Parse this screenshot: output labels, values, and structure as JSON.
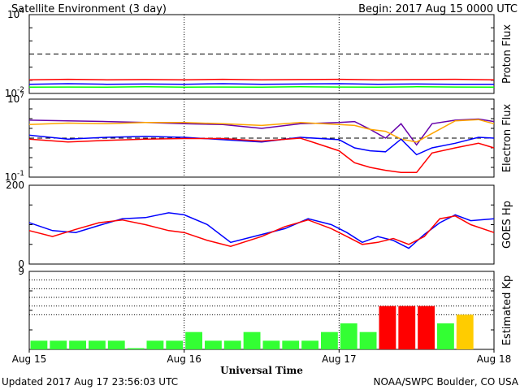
{
  "title": "Satellite Environment (3 day)",
  "begin_label": "Begin:  2017 Aug 15 0000 UTC",
  "updated_label": "Updated 2017 Aug 17 23:56:03 UTC",
  "credit_label": "NOAA/SWPC Boulder, CO USA",
  "xlabel": "Universal Time",
  "x_ticks": [
    "Aug 15",
    "Aug 16",
    "Aug 17",
    "Aug 18"
  ],
  "colors": {
    "red": "#ff0000",
    "blue": "#0000ff",
    "green": "#00ff00",
    "purple": "#6600aa",
    "orange": "#ffa500",
    "kp_green": "#33ff33",
    "kp_yellow": "#ffcc00",
    "kp_red": "#ff0000"
  },
  "chart_data": [
    {
      "id": "proton",
      "type": "line",
      "ylabel": "Proton Flux",
      "scale": "log",
      "ylim": [
        0.01,
        10000
      ],
      "tick_labels": [
        {
          "value": 10000,
          "base": "10",
          "exp": "4"
        },
        {
          "value": 0.01,
          "base": "10",
          "exp": "-2"
        }
      ],
      "threshold": 10,
      "x": [
        0,
        0.25,
        0.5,
        0.75,
        1,
        1.25,
        1.5,
        1.75,
        2,
        2.25,
        2.5,
        2.75,
        3
      ],
      "series": [
        {
          "color": "red",
          "values": [
            0.11,
            0.12,
            0.11,
            0.115,
            0.11,
            0.12,
            0.11,
            0.115,
            0.12,
            0.11,
            0.115,
            0.12,
            0.11
          ]
        },
        {
          "color": "blue",
          "values": [
            0.05,
            0.055,
            0.05,
            0.052,
            0.05,
            0.055,
            0.05,
            0.052,
            0.055,
            0.05,
            0.052,
            0.05,
            0.05
          ]
        },
        {
          "color": "green",
          "values": [
            0.03,
            0.031,
            0.03,
            0.032,
            0.03,
            0.031,
            0.03,
            0.032,
            0.031,
            0.03,
            0.032,
            0.031,
            0.03
          ]
        }
      ]
    },
    {
      "id": "electron",
      "type": "line",
      "ylabel": "Electron Flux",
      "scale": "log",
      "ylim": [
        0.1,
        10000000
      ],
      "tick_labels": [
        {
          "value": 10000000,
          "base": "10",
          "exp": "7"
        },
        {
          "value": 0.1,
          "base": "10",
          "exp": "-1"
        }
      ],
      "threshold": 1000,
      "x": [
        0,
        0.25,
        0.5,
        0.75,
        1,
        1.25,
        1.5,
        1.75,
        2,
        2.1,
        2.2,
        2.3,
        2.4,
        2.5,
        2.6,
        2.75,
        2.9,
        3
      ],
      "series": [
        {
          "color": "purple",
          "values": [
            70000,
            60000,
            50000,
            40000,
            30000,
            25000,
            10000,
            30000,
            40000,
            50000,
            8000,
            1000,
            30000,
            200,
            30000,
            70000,
            90000,
            50000
          ]
        },
        {
          "color": "orange",
          "values": [
            25000,
            35000,
            30000,
            40000,
            40000,
            30000,
            20000,
            40000,
            25000,
            20000,
            8000,
            5000,
            800,
            400,
            3000,
            60000,
            80000,
            30000
          ]
        },
        {
          "color": "blue",
          "values": [
            2000,
            800,
            1200,
            1500,
            1200,
            700,
            400,
            1200,
            700,
            100,
            50,
            40,
            800,
            20,
            100,
            300,
            1200,
            1000
          ]
        },
        {
          "color": "red",
          "values": [
            800,
            400,
            600,
            800,
            900,
            900,
            500,
            1000,
            50,
            3,
            1,
            0.5,
            0.3,
            0.3,
            30,
            100,
            300,
            100
          ]
        }
      ]
    },
    {
      "id": "goes_hp",
      "type": "line",
      "ylabel": "GOES Hp",
      "scale": "linear",
      "ylim": [
        0,
        200
      ],
      "tick_labels": [
        {
          "value": 200,
          "base": "200",
          "exp": ""
        },
        {
          "value": 0,
          "base": "0",
          "exp": ""
        }
      ],
      "x": [
        0,
        0.15,
        0.3,
        0.45,
        0.6,
        0.75,
        0.9,
        1.0,
        1.15,
        1.3,
        1.5,
        1.65,
        1.8,
        1.95,
        2.05,
        2.15,
        2.25,
        2.35,
        2.45,
        2.55,
        2.65,
        2.75,
        2.85,
        3.0
      ],
      "series": [
        {
          "color": "blue",
          "values": [
            105,
            85,
            80,
            98,
            115,
            118,
            130,
            125,
            100,
            55,
            75,
            90,
            115,
            100,
            80,
            55,
            70,
            60,
            40,
            75,
            105,
            125,
            110,
            115
          ]
        },
        {
          "color": "red",
          "values": [
            85,
            70,
            88,
            105,
            112,
            100,
            85,
            80,
            60,
            45,
            70,
            95,
            112,
            90,
            70,
            50,
            55,
            65,
            50,
            70,
            115,
            122,
            100,
            80
          ]
        }
      ]
    },
    {
      "id": "kp",
      "type": "bar",
      "ylabel": "Estimated Kp",
      "scale": "linear",
      "ylim": [
        0,
        9
      ],
      "tick_labels": [
        {
          "value": 9,
          "base": "9",
          "exp": ""
        }
      ],
      "gridlines": [
        4,
        5,
        6,
        7,
        8
      ],
      "values": [
        1,
        1,
        1,
        1,
        1,
        0,
        1,
        1,
        2,
        1,
        1,
        2,
        1,
        1,
        1,
        2,
        3,
        2,
        5,
        5,
        5,
        3,
        4
      ],
      "bar_colors": [
        "kp_green",
        "kp_green",
        "kp_green",
        "kp_green",
        "kp_green",
        "kp_green",
        "kp_green",
        "kp_green",
        "kp_green",
        "kp_green",
        "kp_green",
        "kp_green",
        "kp_green",
        "kp_green",
        "kp_green",
        "kp_green",
        "kp_green",
        "kp_green",
        "kp_red",
        "kp_red",
        "kp_red",
        "kp_green",
        "kp_yellow"
      ]
    }
  ]
}
